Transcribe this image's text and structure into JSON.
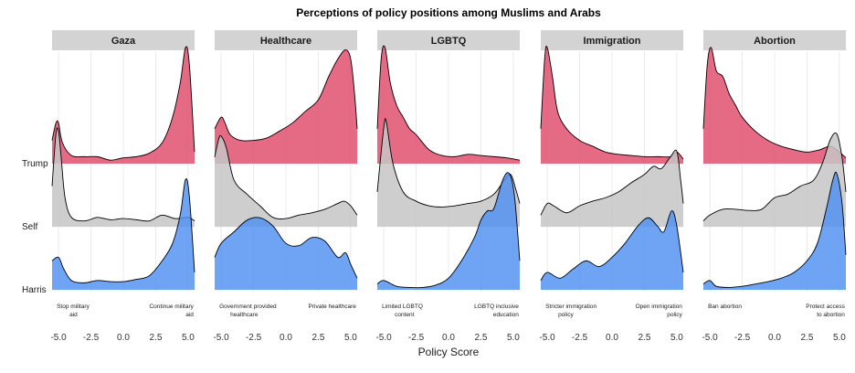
{
  "chart_data": {
    "type": "ridgeline",
    "title": "Perceptions of policy positions among Muslims and Arabs",
    "xlabel": "Policy Score",
    "xlim": [
      -5.5,
      5.5
    ],
    "x_ticks": [
      "-5.0",
      "-2.5",
      "0.0",
      "2.5",
      "5.0"
    ],
    "x_tick_values": [
      -5,
      -2.5,
      0,
      2.5,
      5
    ],
    "rows": [
      "Trump",
      "Self",
      "Harris"
    ],
    "series_colors": {
      "Trump": "#e0506e",
      "Self": "#c6c6c6",
      "Harris": "#4f8ff0"
    },
    "panels": [
      {
        "name": "Gaza",
        "anchors": {
          "left": [
            "Stop military",
            "aid"
          ],
          "right": [
            "Continue military",
            "aid"
          ]
        },
        "densities": {
          "Trump": [
            [
              -5.5,
              0.2
            ],
            [
              -5.2,
              0.35
            ],
            [
              -5.0,
              0.35
            ],
            [
              -4.7,
              0.18
            ],
            [
              -4.0,
              0.07
            ],
            [
              -3.0,
              0.06
            ],
            [
              -2.0,
              0.06
            ],
            [
              -1.0,
              0.03
            ],
            [
              0.0,
              0.05
            ],
            [
              1.0,
              0.06
            ],
            [
              2.0,
              0.09
            ],
            [
              3.0,
              0.18
            ],
            [
              3.8,
              0.4
            ],
            [
              4.4,
              0.7
            ],
            [
              4.8,
              1.0
            ],
            [
              5.1,
              0.85
            ],
            [
              5.5,
              0.1
            ]
          ],
          "Self": [
            [
              -5.5,
              0.35
            ],
            [
              -5.2,
              0.8
            ],
            [
              -5.0,
              0.82
            ],
            [
              -4.8,
              0.6
            ],
            [
              -4.5,
              0.25
            ],
            [
              -4.0,
              0.08
            ],
            [
              -3.0,
              0.05
            ],
            [
              -2.0,
              0.08
            ],
            [
              -1.0,
              0.06
            ],
            [
              0.0,
              0.07
            ],
            [
              1.0,
              0.06
            ],
            [
              2.0,
              0.05
            ],
            [
              3.0,
              0.1
            ],
            [
              4.0,
              0.07
            ],
            [
              5.0,
              0.08
            ],
            [
              5.5,
              0.05
            ]
          ],
          "Harris": [
            [
              -5.5,
              0.25
            ],
            [
              -5.0,
              0.28
            ],
            [
              -4.6,
              0.18
            ],
            [
              -4.0,
              0.08
            ],
            [
              -3.0,
              0.06
            ],
            [
              -2.0,
              0.08
            ],
            [
              -1.0,
              0.07
            ],
            [
              0.0,
              0.07
            ],
            [
              1.0,
              0.09
            ],
            [
              2.0,
              0.12
            ],
            [
              3.0,
              0.25
            ],
            [
              3.8,
              0.4
            ],
            [
              4.4,
              0.65
            ],
            [
              4.8,
              0.95
            ],
            [
              5.1,
              0.8
            ],
            [
              5.5,
              0.15
            ]
          ]
        }
      },
      {
        "name": "Healthcare",
        "anchors": {
          "left": [
            "Government provided",
            "healthcare"
          ],
          "right": [
            "Private healthcare"
          ]
        },
        "densities": {
          "Trump": [
            [
              -5.5,
              0.3
            ],
            [
              -5.0,
              0.4
            ],
            [
              -4.7,
              0.35
            ],
            [
              -4.3,
              0.25
            ],
            [
              -3.5,
              0.2
            ],
            [
              -2.5,
              0.2
            ],
            [
              -1.5,
              0.22
            ],
            [
              -0.5,
              0.28
            ],
            [
              0.5,
              0.35
            ],
            [
              1.5,
              0.45
            ],
            [
              2.5,
              0.55
            ],
            [
              3.3,
              0.75
            ],
            [
              4.0,
              0.9
            ],
            [
              4.6,
              0.98
            ],
            [
              5.0,
              0.9
            ],
            [
              5.3,
              0.6
            ],
            [
              5.5,
              0.3
            ]
          ],
          "Self": [
            [
              -5.5,
              0.6
            ],
            [
              -5.2,
              0.75
            ],
            [
              -5.0,
              0.78
            ],
            [
              -4.6,
              0.68
            ],
            [
              -4.0,
              0.4
            ],
            [
              -3.0,
              0.28
            ],
            [
              -2.0,
              0.18
            ],
            [
              -1.0,
              0.08
            ],
            [
              0.0,
              0.07
            ],
            [
              1.0,
              0.1
            ],
            [
              2.0,
              0.12
            ],
            [
              3.0,
              0.15
            ],
            [
              4.0,
              0.2
            ],
            [
              4.5,
              0.22
            ],
            [
              5.0,
              0.18
            ],
            [
              5.5,
              0.1
            ]
          ],
          "Harris": [
            [
              -5.5,
              0.28
            ],
            [
              -5.0,
              0.4
            ],
            [
              -4.0,
              0.5
            ],
            [
              -3.0,
              0.6
            ],
            [
              -2.0,
              0.62
            ],
            [
              -1.0,
              0.55
            ],
            [
              0.0,
              0.4
            ],
            [
              1.0,
              0.38
            ],
            [
              2.0,
              0.45
            ],
            [
              3.0,
              0.42
            ],
            [
              4.0,
              0.28
            ],
            [
              4.6,
              0.32
            ],
            [
              5.0,
              0.22
            ],
            [
              5.5,
              0.1
            ]
          ]
        }
      },
      {
        "name": "LGBTQ",
        "anchors": {
          "left": [
            "Limited LGBTQ",
            "content"
          ],
          "right": [
            "LGBTQ inclusive",
            "education"
          ]
        },
        "densities": {
          "Trump": [
            [
              -5.5,
              0.3
            ],
            [
              -5.2,
              0.9
            ],
            [
              -4.9,
              1.0
            ],
            [
              -4.5,
              0.7
            ],
            [
              -4.0,
              0.5
            ],
            [
              -3.5,
              0.4
            ],
            [
              -3.0,
              0.3
            ],
            [
              -2.5,
              0.25
            ],
            [
              -1.5,
              0.12
            ],
            [
              -0.5,
              0.07
            ],
            [
              0.5,
              0.06
            ],
            [
              1.5,
              0.08
            ],
            [
              2.5,
              0.07
            ],
            [
              3.5,
              0.06
            ],
            [
              4.5,
              0.05
            ],
            [
              5.5,
              0.03
            ]
          ],
          "Self": [
            [
              -5.5,
              0.3
            ],
            [
              -5.0,
              0.85
            ],
            [
              -4.8,
              0.9
            ],
            [
              -4.3,
              0.55
            ],
            [
              -3.5,
              0.3
            ],
            [
              -2.5,
              0.22
            ],
            [
              -1.5,
              0.18
            ],
            [
              -0.5,
              0.17
            ],
            [
              0.5,
              0.18
            ],
            [
              1.5,
              0.2
            ],
            [
              2.5,
              0.22
            ],
            [
              3.5,
              0.28
            ],
            [
              4.3,
              0.4
            ],
            [
              4.8,
              0.45
            ],
            [
              5.2,
              0.32
            ],
            [
              5.5,
              0.2
            ]
          ],
          "Harris": [
            [
              -5.5,
              0.05
            ],
            [
              -5.0,
              0.08
            ],
            [
              -4.0,
              0.03
            ],
            [
              -3.0,
              0.02
            ],
            [
              -2.0,
              0.02
            ],
            [
              -1.0,
              0.04
            ],
            [
              0.0,
              0.1
            ],
            [
              1.0,
              0.25
            ],
            [
              2.0,
              0.45
            ],
            [
              2.5,
              0.6
            ],
            [
              3.0,
              0.68
            ],
            [
              3.5,
              0.7
            ],
            [
              4.2,
              0.95
            ],
            [
              4.7,
              1.0
            ],
            [
              5.1,
              0.8
            ],
            [
              5.5,
              0.25
            ]
          ]
        }
      },
      {
        "name": "Immigration",
        "anchors": {
          "left": [
            "Stricter immigration",
            "policy"
          ],
          "right": [
            "Open immigration",
            "policy"
          ]
        },
        "densities": {
          "Trump": [
            [
              -5.5,
              0.3
            ],
            [
              -5.2,
              0.9
            ],
            [
              -5.0,
              1.0
            ],
            [
              -4.6,
              0.75
            ],
            [
              -4.2,
              0.45
            ],
            [
              -3.5,
              0.3
            ],
            [
              -2.5,
              0.2
            ],
            [
              -1.5,
              0.15
            ],
            [
              -0.5,
              0.1
            ],
            [
              0.5,
              0.08
            ],
            [
              1.5,
              0.07
            ],
            [
              2.5,
              0.06
            ],
            [
              3.5,
              0.06
            ],
            [
              4.5,
              0.06
            ],
            [
              5.0,
              0.1
            ],
            [
              5.5,
              0.04
            ]
          ],
          "Self": [
            [
              -5.5,
              0.1
            ],
            [
              -5.0,
              0.2
            ],
            [
              -4.5,
              0.18
            ],
            [
              -3.5,
              0.12
            ],
            [
              -2.5,
              0.18
            ],
            [
              -1.5,
              0.22
            ],
            [
              -0.5,
              0.25
            ],
            [
              0.5,
              0.3
            ],
            [
              1.5,
              0.38
            ],
            [
              2.5,
              0.45
            ],
            [
              3.2,
              0.52
            ],
            [
              3.8,
              0.5
            ],
            [
              4.5,
              0.6
            ],
            [
              5.0,
              0.65
            ],
            [
              5.3,
              0.4
            ],
            [
              5.5,
              0.2
            ]
          ],
          "Harris": [
            [
              -5.5,
              0.08
            ],
            [
              -5.0,
              0.15
            ],
            [
              -4.0,
              0.1
            ],
            [
              -3.0,
              0.18
            ],
            [
              -2.0,
              0.25
            ],
            [
              -1.0,
              0.2
            ],
            [
              0.0,
              0.28
            ],
            [
              1.0,
              0.4
            ],
            [
              2.0,
              0.55
            ],
            [
              2.8,
              0.62
            ],
            [
              3.5,
              0.55
            ],
            [
              4.0,
              0.5
            ],
            [
              4.6,
              0.68
            ],
            [
              5.0,
              0.55
            ],
            [
              5.5,
              0.15
            ]
          ]
        }
      },
      {
        "name": "Abortion",
        "anchors": {
          "left": [
            "Ban abortion"
          ],
          "right": [
            "Protect access",
            "to abortion"
          ]
        },
        "densities": {
          "Trump": [
            [
              -5.5,
              0.3
            ],
            [
              -5.2,
              0.85
            ],
            [
              -4.9,
              1.0
            ],
            [
              -4.5,
              0.8
            ],
            [
              -4.0,
              0.75
            ],
            [
              -3.5,
              0.6
            ],
            [
              -3.0,
              0.5
            ],
            [
              -2.5,
              0.4
            ],
            [
              -1.5,
              0.28
            ],
            [
              -0.5,
              0.2
            ],
            [
              0.5,
              0.15
            ],
            [
              1.5,
              0.12
            ],
            [
              2.5,
              0.1
            ],
            [
              3.5,
              0.12
            ],
            [
              4.3,
              0.15
            ],
            [
              5.0,
              0.1
            ],
            [
              5.5,
              0.05
            ]
          ],
          "Self": [
            [
              -5.5,
              0.05
            ],
            [
              -5.0,
              0.1
            ],
            [
              -4.0,
              0.15
            ],
            [
              -3.0,
              0.15
            ],
            [
              -2.0,
              0.14
            ],
            [
              -1.0,
              0.15
            ],
            [
              0.0,
              0.25
            ],
            [
              1.0,
              0.28
            ],
            [
              2.0,
              0.35
            ],
            [
              3.0,
              0.4
            ],
            [
              3.7,
              0.55
            ],
            [
              4.3,
              0.75
            ],
            [
              4.8,
              0.8
            ],
            [
              5.2,
              0.6
            ],
            [
              5.5,
              0.3
            ]
          ],
          "Harris": [
            [
              -5.5,
              0.05
            ],
            [
              -5.0,
              0.08
            ],
            [
              -4.5,
              0.03
            ],
            [
              -3.5,
              0.02
            ],
            [
              -2.5,
              0.03
            ],
            [
              -1.5,
              0.05
            ],
            [
              -0.5,
              0.07
            ],
            [
              0.5,
              0.1
            ],
            [
              1.5,
              0.15
            ],
            [
              2.5,
              0.25
            ],
            [
              3.3,
              0.4
            ],
            [
              4.0,
              0.7
            ],
            [
              4.5,
              0.95
            ],
            [
              4.8,
              1.0
            ],
            [
              5.2,
              0.75
            ],
            [
              5.5,
              0.3
            ]
          ]
        }
      }
    ]
  }
}
